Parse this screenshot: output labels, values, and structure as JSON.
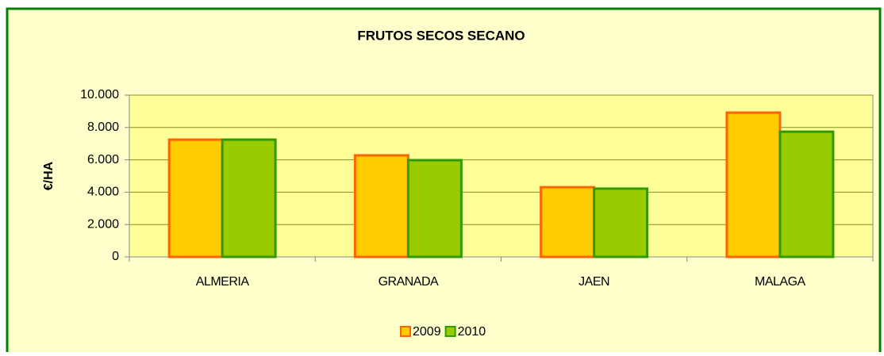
{
  "chart_data": {
    "type": "bar",
    "title": "FRUTOS SECOS SECANO",
    "y_label": "€/HA",
    "categories": [
      "ALMERIA",
      "GRANADA",
      "JAEN",
      "MALAGA"
    ],
    "series": [
      {
        "name": "2009",
        "color": "#FFCC00",
        "border": "#FF6600",
        "values": [
          7250,
          6280,
          4310,
          8920
        ]
      },
      {
        "name": "2010",
        "color": "#99CC00",
        "border": "#339900",
        "values": [
          7250,
          5980,
          4220,
          7740
        ]
      }
    ],
    "ylim": [
      0,
      10000
    ],
    "yticks": [
      0,
      {
        "value": 2000,
        "label": "2.000"
      },
      {
        "value": 4000,
        "label": "4.000"
      },
      {
        "value": 6000,
        "label": "6.000"
      },
      {
        "value": 8000,
        "label": "8.000"
      },
      {
        "value": 10000,
        "label": "10.000"
      }
    ],
    "grid": true,
    "legend": "bottom"
  }
}
